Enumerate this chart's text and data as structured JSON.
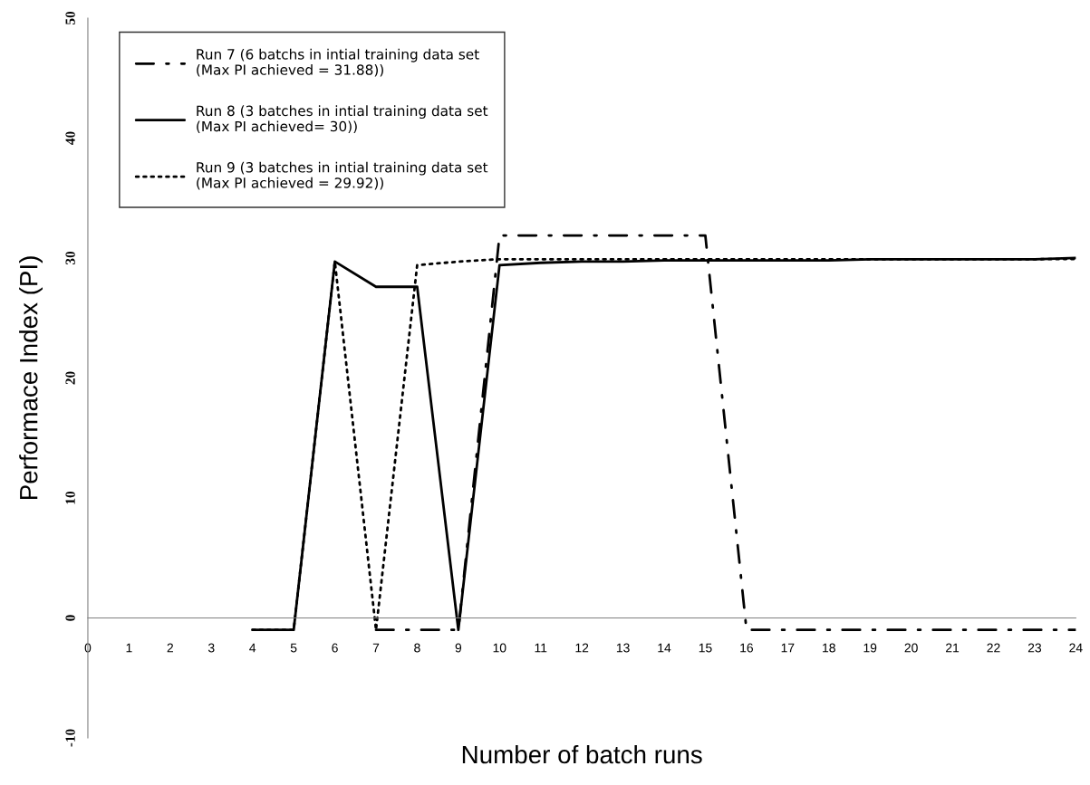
{
  "chart_data": {
    "type": "line",
    "xlabel": "Number of batch runs",
    "ylabel": "Performace Index (PI)",
    "xlim": [
      0,
      24
    ],
    "xticks": [
      0,
      1,
      2,
      3,
      4,
      5,
      6,
      7,
      8,
      9,
      10,
      11,
      12,
      13,
      14,
      15,
      16,
      17,
      18,
      19,
      20,
      21,
      22,
      23,
      24
    ],
    "ylim": [
      -10,
      50
    ],
    "yticks": [
      -10,
      0,
      10,
      20,
      30,
      40,
      50
    ],
    "grid": false,
    "legend": "top left",
    "marker": "none",
    "series": [
      {
        "name": "Run 7 (6 batchs in intial training data set\n(Max PI achieved = 31.88))",
        "color": "#000000",
        "line_style": "dashdot",
        "x": [
          7,
          8,
          9,
          10,
          11,
          12,
          13,
          14,
          15,
          16,
          17,
          18,
          19,
          20,
          21,
          22,
          23,
          24
        ],
        "values": [
          -1,
          -1,
          -1,
          31.88,
          31.88,
          31.88,
          31.88,
          31.88,
          31.88,
          -1,
          -1,
          -1,
          -1,
          -1,
          -1,
          -1,
          -1,
          -1
        ]
      },
      {
        "name": "Run 8 (3 batches in intial training data set\n(Max PI achieved= 30))",
        "color": "#000000",
        "line_style": "solid",
        "x": [
          4,
          5,
          6,
          7,
          8,
          9,
          10,
          11,
          12,
          13,
          14,
          15,
          16,
          17,
          18,
          19,
          20,
          21,
          22,
          23,
          24
        ],
        "values": [
          -1,
          -1,
          29.7,
          27.6,
          27.6,
          -1,
          29.4,
          29.6,
          29.7,
          29.7,
          29.8,
          29.8,
          29.8,
          29.8,
          29.8,
          29.9,
          29.9,
          29.9,
          29.9,
          29.9,
          30
        ]
      },
      {
        "name": "Run 9 (3 batches in intial training data set\n(Max PI achieved = 29.92))",
        "color": "#000000",
        "line_style": "dotted",
        "x": [
          4,
          5,
          6,
          7,
          8,
          9,
          10,
          11,
          12,
          13,
          14,
          15,
          16,
          17,
          18,
          19,
          20,
          21,
          22,
          23,
          24
        ],
        "values": [
          -1,
          -1,
          29.7,
          -1,
          29.4,
          29.7,
          29.9,
          29.9,
          29.9,
          29.9,
          29.9,
          29.9,
          29.9,
          29.9,
          29.9,
          29.9,
          29.9,
          29.9,
          29.9,
          29.9,
          29.92
        ]
      }
    ]
  }
}
